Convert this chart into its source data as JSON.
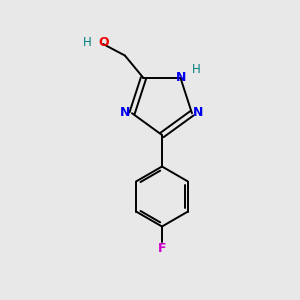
{
  "background_color": "#e8e8e8",
  "bond_color": "#000000",
  "atom_colors": {
    "N": "#0000ee",
    "O": "#ee0000",
    "F": "#cc00cc",
    "H": "#008080",
    "C": "#000000"
  },
  "figsize": [
    3.0,
    3.0
  ],
  "dpi": 100
}
